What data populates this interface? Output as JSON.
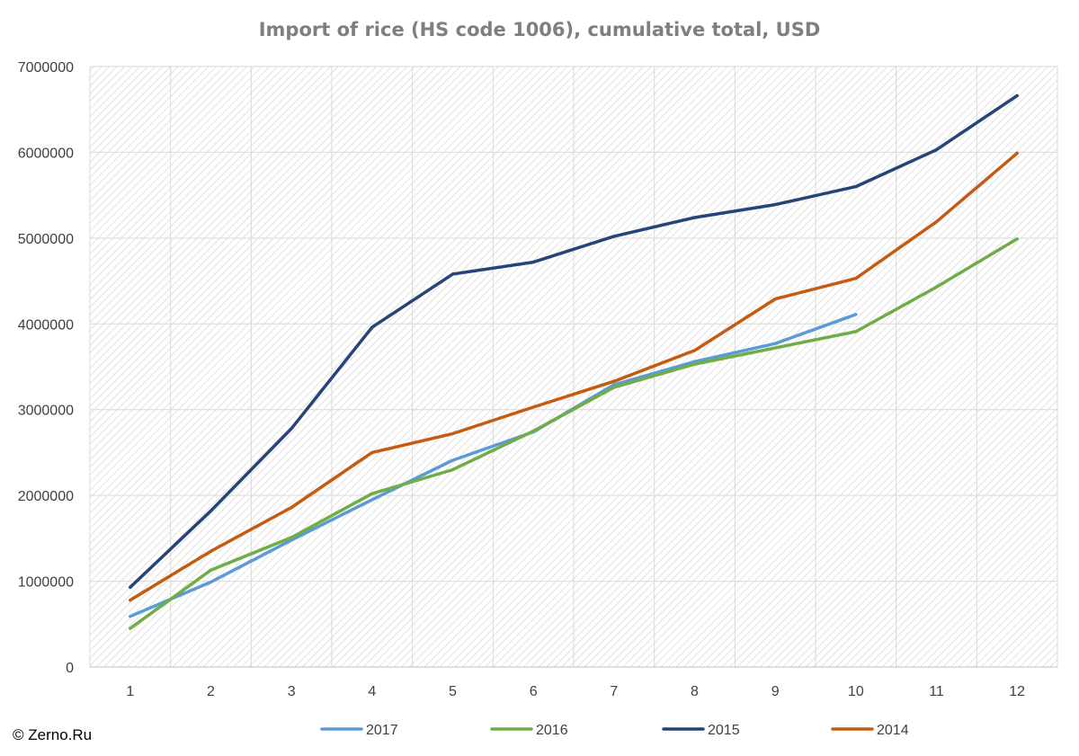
{
  "credit": "© Zerno.Ru",
  "chart_data": {
    "type": "line",
    "title": "Import of rice (HS code 1006), cumulative total, USD",
    "xlabel": "",
    "ylabel": "",
    "categories": [
      "1",
      "2",
      "3",
      "4",
      "5",
      "6",
      "7",
      "8",
      "9",
      "10",
      "11",
      "12"
    ],
    "ylim": [
      0,
      7000000
    ],
    "yticks": [
      "0",
      "1000000",
      "2000000",
      "3000000",
      "4000000",
      "5000000",
      "6000000",
      "7000000"
    ],
    "grid": true,
    "legend_position": "bottom",
    "series": [
      {
        "name": "2017",
        "color": "#5b9bd5",
        "values": [
          590000,
          990000,
          1480000,
          1950000,
          2410000,
          2740000,
          3290000,
          3560000,
          3770000,
          4110000,
          null,
          null
        ]
      },
      {
        "name": "2016",
        "color": "#70ad47",
        "values": [
          450000,
          1130000,
          1510000,
          2020000,
          2300000,
          2750000,
          3260000,
          3530000,
          3720000,
          3910000,
          4430000,
          4990000
        ]
      },
      {
        "name": "2015",
        "color": "#264478",
        "values": [
          930000,
          1820000,
          2780000,
          3960000,
          4580000,
          4720000,
          5020000,
          5240000,
          5390000,
          5600000,
          6030000,
          6660000
        ]
      },
      {
        "name": "2014",
        "color": "#c55a11",
        "values": [
          780000,
          1350000,
          1860000,
          2500000,
          2720000,
          3030000,
          3330000,
          3690000,
          4290000,
          4530000,
          5190000,
          5990000
        ]
      }
    ]
  }
}
